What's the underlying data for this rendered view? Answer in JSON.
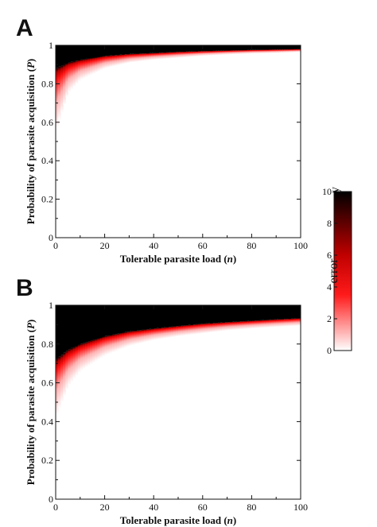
{
  "chart_data": [
    {
      "panel": "A",
      "type": "heatmap",
      "xlabel": "Tolerable parasite load (n)",
      "xlabel_parts": [
        "Tolerable parasite load (",
        "n",
        ")"
      ],
      "ylabel": "Probability of parasite acquisition (P)",
      "ylabel_parts": [
        "Probability of parasite acquisition (",
        "P",
        ")"
      ],
      "xlim": [
        0,
        100
      ],
      "ylim": [
        0,
        1
      ],
      "x_ticks": [
        "0",
        "20",
        "40",
        "60",
        "80",
        "100"
      ],
      "y_ticks": [
        "0",
        "0.2",
        "0.4",
        "0.6",
        "0.8",
        "1"
      ],
      "grid": false,
      "saturation_boundary": {
        "n": [
          0,
          5,
          10,
          20,
          30,
          40,
          50,
          60,
          70,
          80,
          90,
          100
        ],
        "P": [
          0.88,
          0.91,
          0.925,
          0.945,
          0.955,
          0.96,
          0.966,
          0.97,
          0.973,
          0.976,
          0.978,
          0.98
        ]
      },
      "gradient_onset": {
        "n": [
          0,
          5,
          10,
          20,
          30,
          40,
          50,
          60,
          70,
          80,
          90,
          100
        ],
        "P": [
          0.55,
          0.75,
          0.82,
          0.88,
          0.91,
          0.925,
          0.935,
          0.945,
          0.952,
          0.957,
          0.96,
          0.965
        ]
      }
    },
    {
      "panel": "B",
      "type": "heatmap",
      "xlabel": "Tolerable parasite load (n)",
      "xlabel_parts": [
        "Tolerable parasite load (",
        "n",
        ")"
      ],
      "ylabel": "Probability of parasite acquisition (P)",
      "ylabel_parts": [
        "Probability of parasite acquisition (",
        "P",
        ")"
      ],
      "xlim": [
        0,
        100
      ],
      "ylim": [
        0,
        1
      ],
      "x_ticks": [
        "0",
        "20",
        "40",
        "60",
        "80",
        "100"
      ],
      "y_ticks": [
        "0",
        "0.2",
        "0.4",
        "0.6",
        "0.8",
        "1"
      ],
      "grid": false,
      "saturation_boundary": {
        "n": [
          0,
          5,
          10,
          20,
          30,
          40,
          50,
          60,
          70,
          80,
          90,
          100
        ],
        "P": [
          0.72,
          0.77,
          0.8,
          0.84,
          0.865,
          0.88,
          0.893,
          0.905,
          0.913,
          0.92,
          0.927,
          0.933
        ]
      },
      "gradient_onset": {
        "n": [
          0,
          5,
          10,
          20,
          30,
          40,
          50,
          60,
          70,
          80,
          90,
          100
        ],
        "P": [
          0.42,
          0.58,
          0.66,
          0.74,
          0.79,
          0.82,
          0.84,
          0.855,
          0.87,
          0.88,
          0.888,
          0.895
        ]
      }
    }
  ],
  "colorbar": {
    "title": "error",
    "max_label": "y",
    "range": [
      0,
      10
    ],
    "ticks": [
      "0",
      "2",
      "4",
      "6",
      "8",
      "10"
    ],
    "stops": [
      {
        "value": 0,
        "color": "#ffffff"
      },
      {
        "value": 3.5,
        "color": "#ff1a1a"
      },
      {
        "value": 6,
        "color": "#c00000"
      },
      {
        "value": 10,
        "color": "#000000"
      }
    ]
  }
}
